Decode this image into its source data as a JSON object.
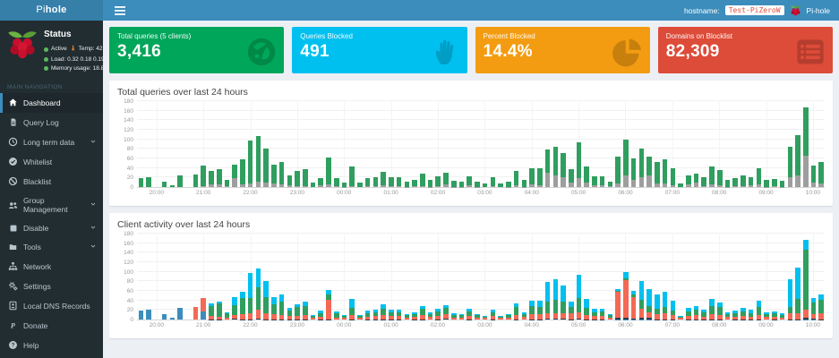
{
  "brand": {
    "prefix": "Pi",
    "suffix": "hole"
  },
  "header": {
    "hostname_label": "hostname:",
    "hostname_value": "Test-PiZeroW",
    "app_label": "Pi-hole"
  },
  "sidebar": {
    "section_label": "MAIN NAVIGATION",
    "status": {
      "heading": "Status",
      "active_text": "Active",
      "temp_text": "Temp: 42.2 °C",
      "load_text": "Load: 0.32 0.18 0.19",
      "memory_text": "Memory usage: 18.8%"
    },
    "items": [
      {
        "label": "Dashboard",
        "icon": "dashboard-icon",
        "active": true
      },
      {
        "label": "Query Log",
        "icon": "file-icon"
      },
      {
        "label": "Long term data",
        "icon": "clock-icon",
        "chevron": true
      },
      {
        "label": "Whitelist",
        "icon": "check-circle-icon"
      },
      {
        "label": "Blacklist",
        "icon": "ban-icon"
      },
      {
        "label": "Group Management",
        "icon": "users-icon",
        "chevron": true
      },
      {
        "label": "Disable",
        "icon": "stop-icon",
        "chevron": true
      },
      {
        "label": "Tools",
        "icon": "folder-icon",
        "chevron": true
      },
      {
        "label": "Network",
        "icon": "sitemap-icon"
      },
      {
        "label": "Settings",
        "icon": "gears-icon"
      },
      {
        "label": "Local DNS Records",
        "icon": "address-book-icon"
      },
      {
        "label": "Donate",
        "icon": "paypal-icon"
      },
      {
        "label": "Help",
        "icon": "question-icon"
      }
    ]
  },
  "cards": [
    {
      "title": "Total queries (5 clients)",
      "value": "3,416",
      "color": "#00a65a",
      "icon": "globe-icon"
    },
    {
      "title": "Queries Blocked",
      "value": "491",
      "color": "#00c0ef",
      "icon": "hand-icon"
    },
    {
      "title": "Percent Blocked",
      "value": "14.4%",
      "color": "#f39c12",
      "icon": "pie-chart-icon"
    },
    {
      "title": "Domains on Blocklist",
      "value": "82,309",
      "color": "#dd4b39",
      "icon": "list-icon"
    }
  ],
  "chart_data": [
    {
      "type": "bar",
      "stacked": true,
      "title": "Total queries over last 24 hours",
      "xlabel": "",
      "ylabel": "",
      "ylim": [
        0,
        180
      ],
      "ytick_step": 20,
      "grid": true,
      "legend": "none",
      "x_tick_labels": [
        "20:00",
        "21:00",
        "22:00",
        "23:00",
        "00:00",
        "01:00",
        "02:00",
        "03:00",
        "04:00",
        "05:00",
        "06:00",
        "07:00",
        "08:00",
        "09:00",
        "10:00"
      ],
      "tick_start_index": 2,
      "tick_every": 6,
      "series_colors": [
        "#9e9e9e",
        "#2f9e5f"
      ],
      "bars": [
        [
          0,
          19
        ],
        [
          0,
          21
        ],
        [
          0,
          0
        ],
        [
          0,
          11
        ],
        [
          0,
          4
        ],
        [
          0,
          25
        ],
        [
          0,
          0
        ],
        [
          0,
          27
        ],
        [
          2,
          43
        ],
        [
          5,
          28
        ],
        [
          5,
          33
        ],
        [
          2,
          13
        ],
        [
          18,
          29
        ],
        [
          5,
          53
        ],
        [
          8,
          89
        ],
        [
          12,
          95
        ],
        [
          10,
          70
        ],
        [
          8,
          39
        ],
        [
          5,
          47
        ],
        [
          3,
          21
        ],
        [
          2,
          31
        ],
        [
          2,
          35
        ],
        [
          0,
          9
        ],
        [
          3,
          16
        ],
        [
          5,
          57
        ],
        [
          2,
          16
        ],
        [
          1,
          8
        ],
        [
          2,
          42
        ],
        [
          0,
          9
        ],
        [
          2,
          17
        ],
        [
          2,
          18
        ],
        [
          3,
          29
        ],
        [
          2,
          19
        ],
        [
          2,
          19
        ],
        [
          1,
          11
        ],
        [
          2,
          13
        ],
        [
          2,
          27
        ],
        [
          1,
          14
        ],
        [
          2,
          21
        ],
        [
          6,
          25
        ],
        [
          1,
          12
        ],
        [
          1,
          11
        ],
        [
          3,
          19
        ],
        [
          1,
          11
        ],
        [
          0,
          8
        ],
        [
          2,
          19
        ],
        [
          0,
          8
        ],
        [
          1,
          11
        ],
        [
          3,
          31
        ],
        [
          1,
          14
        ],
        [
          5,
          35
        ],
        [
          3,
          37
        ],
        [
          30,
          48
        ],
        [
          25,
          59
        ],
        [
          20,
          52
        ],
        [
          10,
          27
        ],
        [
          18,
          75
        ],
        [
          10,
          34
        ],
        [
          3,
          19
        ],
        [
          3,
          20
        ],
        [
          2,
          10
        ],
        [
          8,
          56
        ],
        [
          25,
          75
        ],
        [
          15,
          45
        ],
        [
          20,
          61
        ],
        [
          25,
          39
        ],
        [
          8,
          45
        ],
        [
          8,
          51
        ],
        [
          3,
          36
        ],
        [
          0,
          8
        ],
        [
          5,
          20
        ],
        [
          10,
          19
        ],
        [
          2,
          19
        ],
        [
          5,
          39
        ],
        [
          3,
          33
        ],
        [
          1,
          15
        ],
        [
          2,
          16
        ],
        [
          2,
          23
        ],
        [
          3,
          17
        ],
        [
          5,
          34
        ],
        [
          1,
          15
        ],
        [
          2,
          15
        ],
        [
          1,
          12
        ],
        [
          20,
          65
        ],
        [
          25,
          84
        ],
        [
          65,
          101
        ],
        [
          10,
          36
        ],
        [
          8,
          44
        ]
      ]
    },
    {
      "type": "bar",
      "stacked": true,
      "title": "Client activity over last 24 hours",
      "xlabel": "",
      "ylabel": "",
      "ylim": [
        0,
        180
      ],
      "ytick_step": 20,
      "grid": true,
      "legend": "none",
      "x_tick_labels": [
        "20:00",
        "21:00",
        "22:00",
        "23:00",
        "00:00",
        "01:00",
        "02:00",
        "03:00",
        "04:00",
        "05:00",
        "06:00",
        "07:00",
        "08:00",
        "09:00",
        "10:00"
      ],
      "tick_start_index": 2,
      "tick_every": 6,
      "series_colors": [
        "#3c8dbc",
        "#2c3e50",
        "#f56954",
        "#2f9e5f",
        "#00c0ef"
      ],
      "bars": [
        [
          19,
          0,
          0,
          0,
          0
        ],
        [
          21,
          0,
          0,
          0,
          0
        ],
        [
          0,
          0,
          0,
          0,
          0
        ],
        [
          11,
          0,
          0,
          0,
          0
        ],
        [
          4,
          0,
          0,
          0,
          0
        ],
        [
          25,
          0,
          0,
          0,
          0
        ],
        [
          0,
          0,
          0,
          0,
          0
        ],
        [
          0,
          0,
          27,
          0,
          0
        ],
        [
          17,
          0,
          28,
          0,
          0
        ],
        [
          0,
          1,
          7,
          20,
          5
        ],
        [
          0,
          1,
          5,
          27,
          5
        ],
        [
          0,
          0,
          4,
          9,
          2
        ],
        [
          0,
          2,
          8,
          20,
          17
        ],
        [
          0,
          1,
          10,
          35,
          12
        ],
        [
          0,
          1,
          13,
          32,
          51
        ],
        [
          0,
          2,
          18,
          48,
          39
        ],
        [
          0,
          1,
          12,
          34,
          33
        ],
        [
          0,
          1,
          10,
          21,
          15
        ],
        [
          0,
          1,
          8,
          28,
          15
        ],
        [
          0,
          1,
          6,
          12,
          5
        ],
        [
          0,
          1,
          7,
          18,
          7
        ],
        [
          0,
          1,
          8,
          20,
          8
        ],
        [
          0,
          0,
          3,
          4,
          2
        ],
        [
          0,
          1,
          5,
          8,
          5
        ],
        [
          0,
          1,
          40,
          12,
          9
        ],
        [
          0,
          0,
          4,
          10,
          4
        ],
        [
          0,
          0,
          3,
          4,
          2
        ],
        [
          0,
          1,
          8,
          15,
          20
        ],
        [
          0,
          0,
          3,
          4,
          2
        ],
        [
          0,
          1,
          5,
          8,
          5
        ],
        [
          0,
          1,
          6,
          8,
          5
        ],
        [
          0,
          1,
          8,
          13,
          10
        ],
        [
          0,
          1,
          6,
          9,
          5
        ],
        [
          0,
          1,
          6,
          9,
          5
        ],
        [
          0,
          0,
          4,
          6,
          2
        ],
        [
          0,
          1,
          5,
          6,
          3
        ],
        [
          0,
          1,
          8,
          14,
          6
        ],
        [
          0,
          0,
          5,
          7,
          3
        ],
        [
          0,
          1,
          7,
          10,
          5
        ],
        [
          0,
          2,
          9,
          13,
          7
        ],
        [
          0,
          0,
          4,
          6,
          3
        ],
        [
          0,
          0,
          4,
          5,
          3
        ],
        [
          0,
          1,
          6,
          10,
          5
        ],
        [
          0,
          0,
          4,
          5,
          3
        ],
        [
          0,
          0,
          3,
          3,
          2
        ],
        [
          0,
          1,
          6,
          9,
          5
        ],
        [
          0,
          0,
          3,
          3,
          2
        ],
        [
          0,
          0,
          4,
          5,
          3
        ],
        [
          0,
          1,
          9,
          16,
          8
        ],
        [
          0,
          0,
          5,
          7,
          3
        ],
        [
          0,
          1,
          10,
          17,
          12
        ],
        [
          0,
          1,
          10,
          16,
          13
        ],
        [
          0,
          2,
          12,
          24,
          40
        ],
        [
          0,
          2,
          12,
          28,
          42
        ],
        [
          0,
          2,
          11,
          24,
          35
        ],
        [
          0,
          1,
          12,
          14,
          10
        ],
        [
          0,
          2,
          13,
          30,
          48
        ],
        [
          0,
          1,
          9,
          14,
          20
        ],
        [
          0,
          1,
          6,
          9,
          6
        ],
        [
          0,
          1,
          6,
          10,
          6
        ],
        [
          0,
          0,
          4,
          5,
          3
        ],
        [
          1,
          2,
          55,
          3,
          3
        ],
        [
          1,
          2,
          80,
          4,
          13
        ],
        [
          1,
          1,
          45,
          5,
          8
        ],
        [
          1,
          2,
          20,
          18,
          40
        ],
        [
          1,
          2,
          12,
          14,
          35
        ],
        [
          0,
          1,
          10,
          12,
          30
        ],
        [
          0,
          1,
          12,
          14,
          32
        ],
        [
          0,
          1,
          8,
          10,
          20
        ],
        [
          0,
          0,
          3,
          3,
          2
        ],
        [
          0,
          1,
          6,
          10,
          8
        ],
        [
          0,
          1,
          8,
          12,
          8
        ],
        [
          0,
          1,
          5,
          9,
          6
        ],
        [
          0,
          1,
          10,
          18,
          15
        ],
        [
          0,
          1,
          9,
          16,
          10
        ],
        [
          0,
          0,
          5,
          7,
          4
        ],
        [
          0,
          1,
          5,
          7,
          5
        ],
        [
          0,
          1,
          6,
          10,
          8
        ],
        [
          0,
          1,
          5,
          8,
          6
        ],
        [
          0,
          1,
          9,
          16,
          13
        ],
        [
          0,
          0,
          5,
          7,
          4
        ],
        [
          0,
          1,
          5,
          7,
          4
        ],
        [
          0,
          0,
          4,
          5,
          4
        ],
        [
          0,
          1,
          12,
          14,
          58
        ],
        [
          0,
          1,
          12,
          30,
          66
        ],
        [
          1,
          2,
          18,
          125,
          20
        ],
        [
          1,
          1,
          10,
          24,
          10
        ],
        [
          0,
          1,
          12,
          28,
          11
        ]
      ]
    }
  ]
}
